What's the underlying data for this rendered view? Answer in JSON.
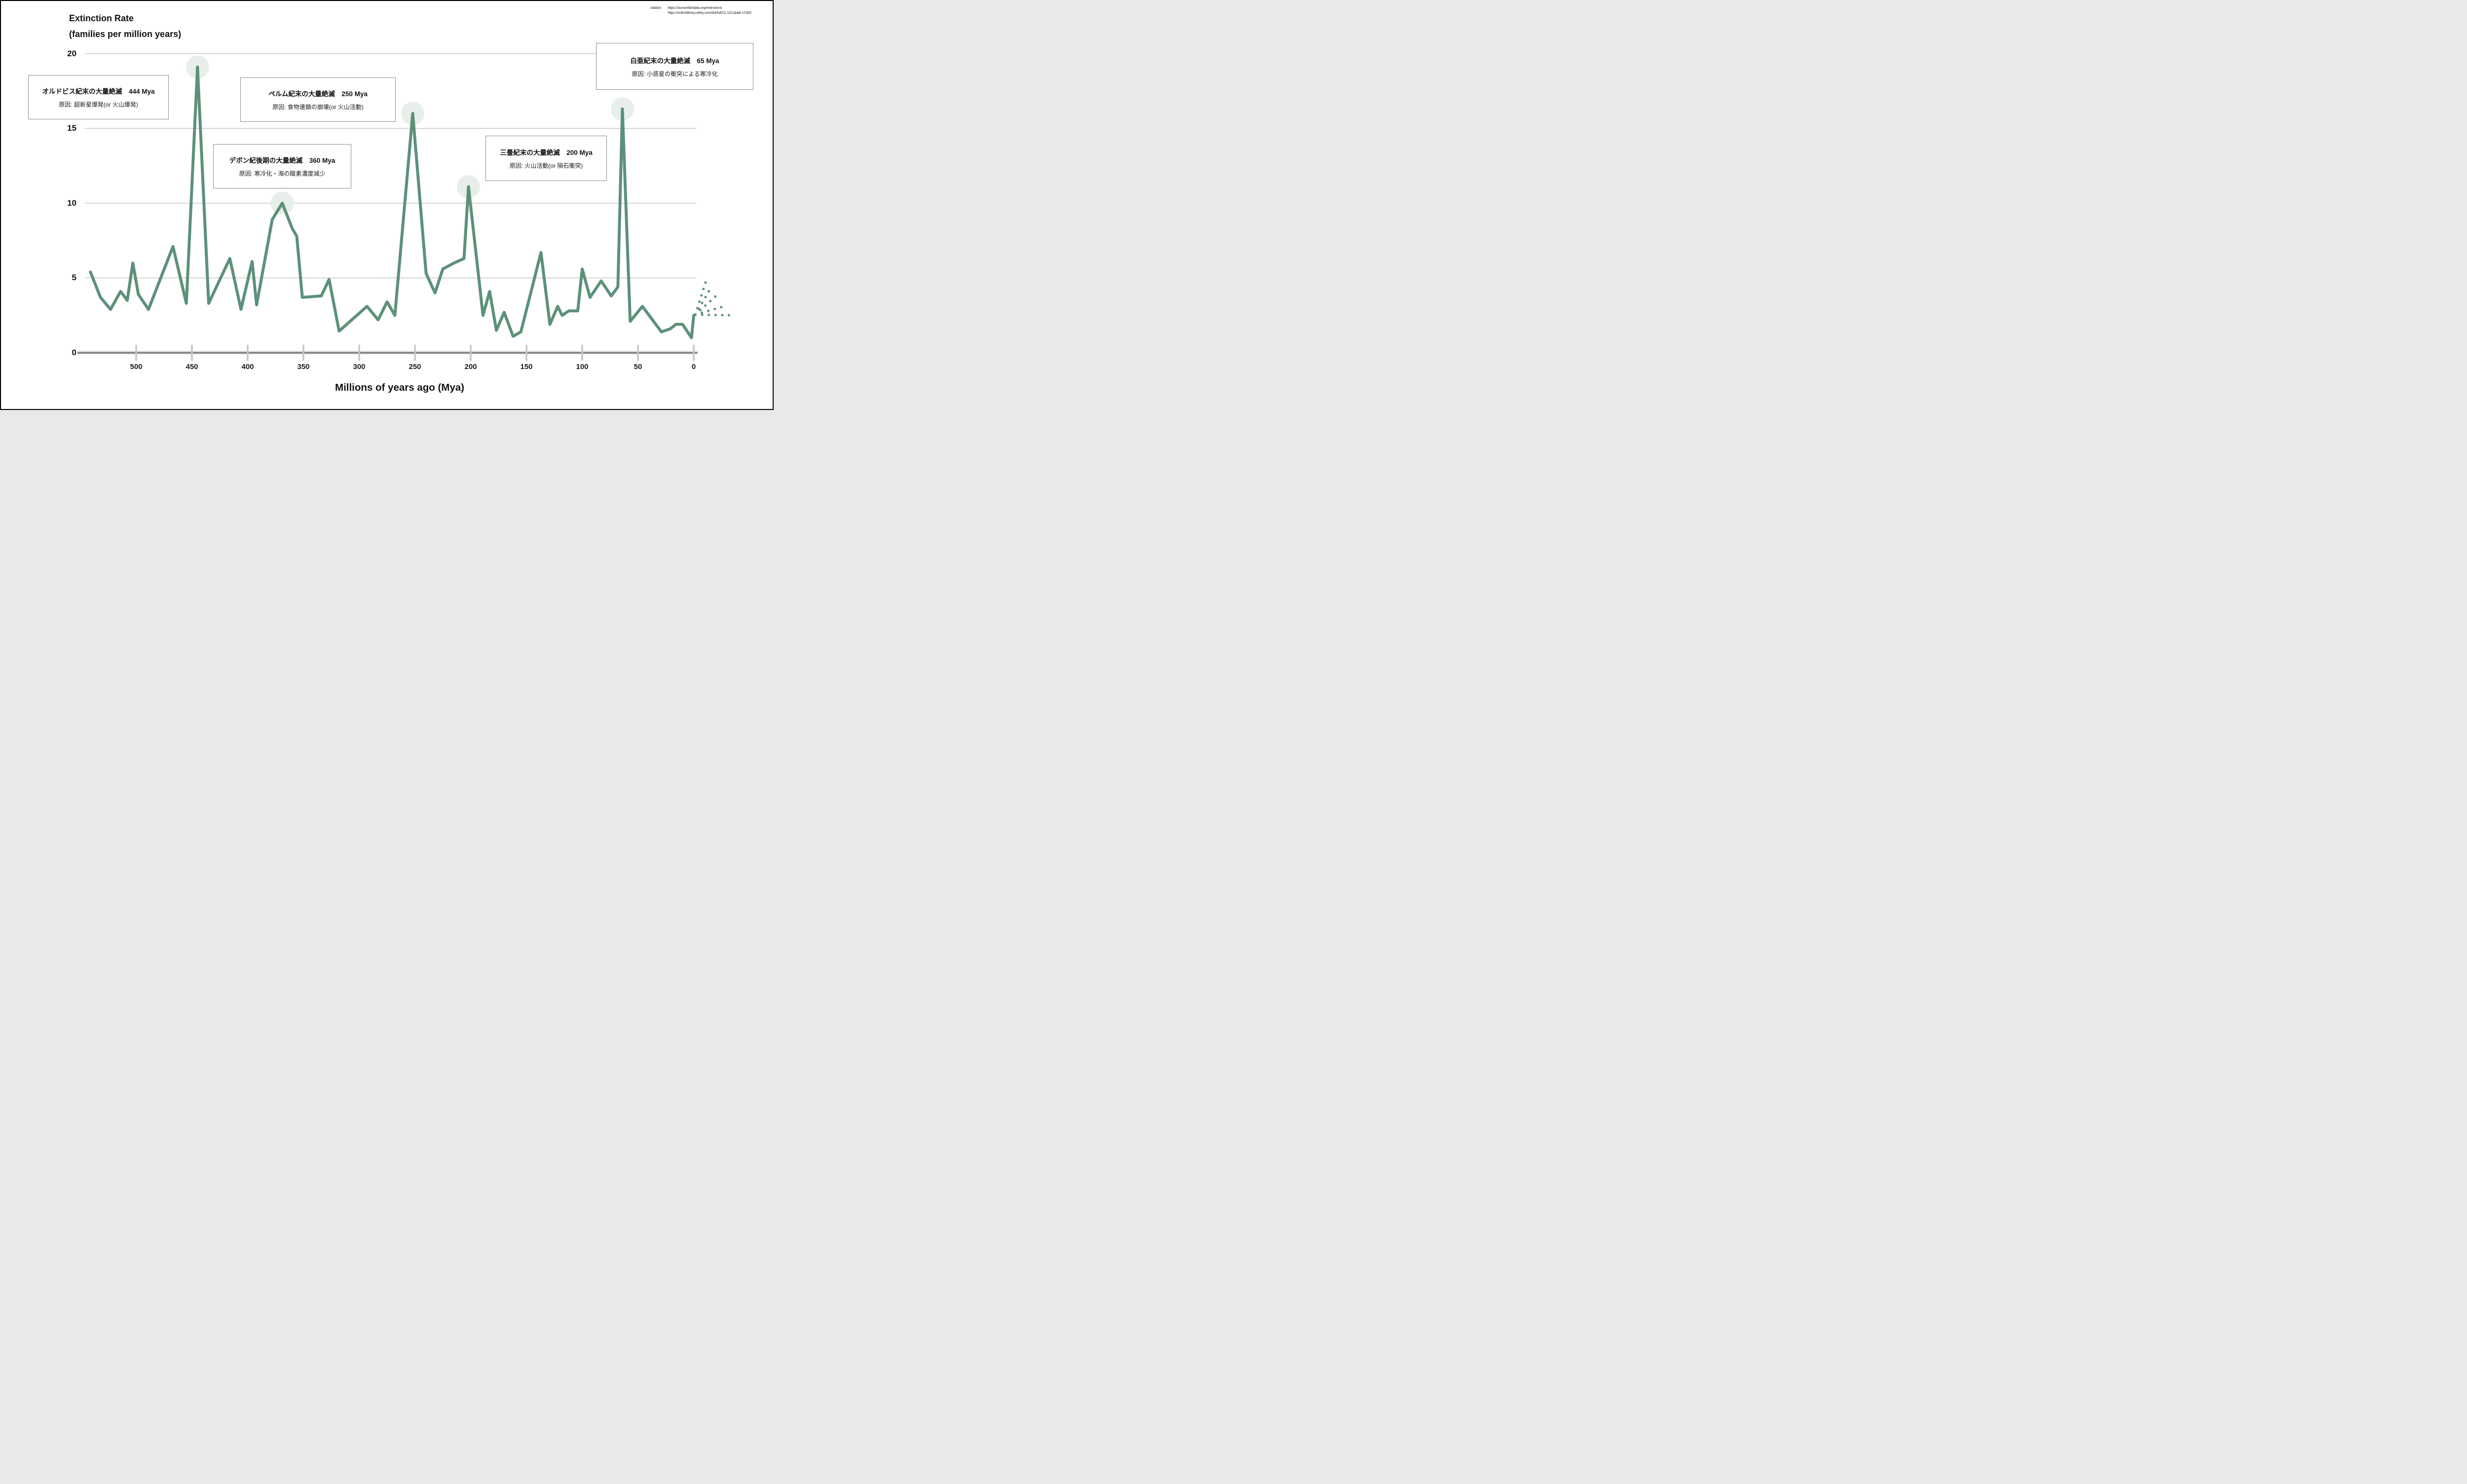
{
  "header": {
    "title_line1": "Extinction Rate",
    "title_line2": "(families per million years)"
  },
  "citation": {
    "label": "citation:",
    "links": [
      "https://ourworldindata.org/extinctions",
      "https://onlinelibrary.wiley.com/doi/full/10.1111/padr.12283"
    ]
  },
  "annotations": [
    {
      "title": "オルドビス紀末の大量絶滅　444 Mya",
      "cause": "原因: 超新星爆発(or 火山爆発)"
    },
    {
      "title": "デボン紀後期の大量絶滅　360 Mya",
      "cause": "原因: 寒冷化・海の酸素濃度減少"
    },
    {
      "title": "ペルム紀末の大量絶滅　250 Mya",
      "cause": "原因: 食物連鎖の崩壊(or 火山活動)"
    },
    {
      "title": "三畳紀末の大量絶滅　200 Mya",
      "cause": "原因: 火山活動(or 隕石衝突)"
    },
    {
      "title": "白亜紀末の大量絶滅　65 Mya",
      "cause": "原因: 小惑星の衝突による寒冷化"
    }
  ],
  "chart_data": {
    "type": "line",
    "title": "Extinction Rate (families per million years)",
    "xlabel": "Millions of years ago (Mya)",
    "ylabel": "Extinction Rate (families per million years)",
    "xlim": [
      541,
      -45
    ],
    "ylim": [
      0,
      20
    ],
    "x_ticks": [
      500,
      450,
      400,
      350,
      300,
      250,
      200,
      150,
      100,
      50,
      0
    ],
    "y_ticks": [
      0,
      5,
      10,
      15,
      20
    ],
    "grid": "horizontal",
    "legend": "none",
    "series": [
      {
        "name": "extinction-rate",
        "points": [
          [
            541,
            5.4
          ],
          [
            532,
            3.7
          ],
          [
            523,
            2.9
          ],
          [
            514,
            4.1
          ],
          [
            508,
            3.5
          ],
          [
            503,
            6.0
          ],
          [
            498,
            3.9
          ],
          [
            489,
            2.9
          ],
          [
            467,
            7.1
          ],
          [
            455,
            3.3
          ],
          [
            445,
            19.1
          ],
          [
            435,
            3.3
          ],
          [
            416,
            6.3
          ],
          [
            406,
            2.9
          ],
          [
            396,
            6.1
          ],
          [
            392,
            3.2
          ],
          [
            378,
            8.9
          ],
          [
            369,
            10.0
          ],
          [
            360,
            8.3
          ],
          [
            356,
            7.8
          ],
          [
            351,
            3.7
          ],
          [
            334,
            3.8
          ],
          [
            327,
            4.9
          ],
          [
            318,
            1.45
          ],
          [
            293,
            3.1
          ],
          [
            283,
            2.2
          ],
          [
            275,
            3.4
          ],
          [
            268,
            2.5
          ],
          [
            252,
            16.0
          ],
          [
            240,
            5.3
          ],
          [
            232,
            4.0
          ],
          [
            225,
            5.6
          ],
          [
            215,
            6.0
          ],
          [
            206,
            6.3
          ],
          [
            202,
            11.1
          ],
          [
            189,
            2.5
          ],
          [
            183,
            4.1
          ],
          [
            177,
            1.5
          ],
          [
            170,
            2.7
          ],
          [
            162,
            1.1
          ],
          [
            155,
            1.4
          ],
          [
            137,
            6.7
          ],
          [
            129,
            1.9
          ],
          [
            122,
            3.1
          ],
          [
            118,
            2.5
          ],
          [
            112,
            2.8
          ],
          [
            104,
            2.8
          ],
          [
            100,
            5.6
          ],
          [
            93,
            3.7
          ],
          [
            83,
            4.8
          ],
          [
            74,
            3.8
          ],
          [
            68,
            4.4
          ],
          [
            64,
            16.3
          ],
          [
            57,
            2.1
          ],
          [
            46,
            3.1
          ],
          [
            37,
            2.2
          ],
          [
            29,
            1.4
          ],
          [
            21,
            1.6
          ],
          [
            16,
            1.9
          ],
          [
            10,
            1.9
          ],
          [
            2,
            1.0
          ],
          [
            0,
            2.5
          ]
        ]
      }
    ],
    "highlighted_peaks": [
      {
        "event": "end-Ordovician",
        "mya": 445,
        "rate": 19.1
      },
      {
        "event": "late-Devonian",
        "mya": 369,
        "rate": 10.0
      },
      {
        "event": "end-Permian",
        "mya": 252,
        "rate": 16.0
      },
      {
        "event": "end-Triassic",
        "mya": 202,
        "rate": 11.1
      },
      {
        "event": "end-Cretaceous",
        "mya": 64,
        "rate": 16.3
      }
    ],
    "projection_fan": {
      "origin": [
        -1.5,
        2.55
      ],
      "rays": [
        [
          -11,
          4.8
        ],
        [
          -15,
          4.3
        ],
        [
          -20,
          3.8
        ],
        [
          -27,
          3.1
        ],
        [
          -35,
          2.5
        ]
      ],
      "style": "dotted"
    },
    "colors": {
      "line": "#5c9179",
      "peak_highlight": "#e8eeea",
      "gridline": "#c9c9c9",
      "axis": "#8a8a8a",
      "tick": "#c6c6c6",
      "text": "#111111"
    }
  }
}
